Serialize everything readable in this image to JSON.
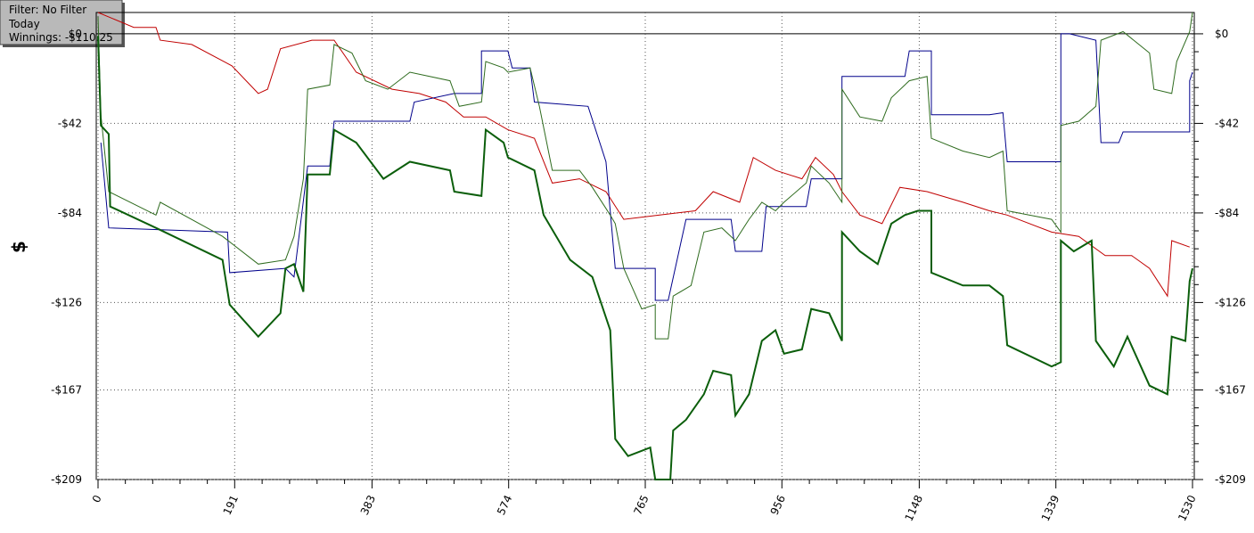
{
  "filter_box": {
    "filter": "Filter: No Filter",
    "period": "Today",
    "winnings": "Winnings: -$110.25"
  },
  "chart_data": {
    "type": "line",
    "y_label": "$",
    "xlim": [
      0,
      1530
    ],
    "xticks": [
      0,
      191,
      383,
      574,
      765,
      956,
      1148,
      1339,
      1530
    ],
    "ylim": [
      -209,
      10
    ],
    "yticks": [
      {
        "value": 0,
        "label": "$0"
      },
      {
        "value": -42,
        "label": "-$42"
      },
      {
        "value": -84,
        "label": "-$84"
      },
      {
        "value": -126,
        "label": "-$126"
      },
      {
        "value": -167,
        "label": "-$167"
      },
      {
        "value": -209,
        "label": "-$209"
      }
    ],
    "grid": true,
    "series": [
      {
        "color": "#c00000",
        "width": 1,
        "x": [
          0,
          50,
          81,
          87,
          131,
          187,
          224,
          237,
          255,
          299,
          330,
          361,
          411,
          449,
          486,
          511,
          542,
          573,
          610,
          635,
          673,
          710,
          735,
          785,
          835,
          860,
          897,
          916,
          947,
          984,
          1003,
          1028,
          1040,
          1065,
          1096,
          1121,
          1159,
          1209,
          1246,
          1271,
          1333,
          1371,
          1408,
          1445,
          1470,
          1495,
          1501,
          1526
        ],
        "values": [
          10,
          3,
          3,
          -3,
          -5,
          -15,
          -28,
          -26,
          -7,
          -3,
          -3,
          -18,
          -26,
          -28,
          -32,
          -39,
          -39,
          -45,
          -49,
          -70,
          -68,
          -74,
          -87,
          -85,
          -83,
          -74,
          -79,
          -58,
          -64,
          -68,
          -58,
          -66,
          -74,
          -85,
          -89,
          -72,
          -74,
          -79,
          -83,
          -85,
          -93,
          -95,
          -104,
          -104,
          -110,
          -123,
          -97,
          -100
        ]
      },
      {
        "color": "#00008b",
        "width": 1,
        "x": [
          4,
          15,
          181,
          184,
          262,
          274,
          293,
          324,
          330,
          436,
          442,
          498,
          536,
          536,
          573,
          579,
          604,
          610,
          685,
          710,
          723,
          779,
          779,
          797,
          822,
          885,
          891,
          928,
          934,
          990,
          997,
          1040,
          1040,
          1128,
          1134,
          1165,
          1165,
          1246,
          1265,
          1271,
          1346,
          1346,
          1358,
          1395,
          1402,
          1427,
          1433,
          1526,
          1526,
          1530
        ],
        "values": [
          -51,
          -91,
          -93,
          -112,
          -110,
          -114,
          -62,
          -62,
          -41,
          -41,
          -32,
          -28,
          -28,
          -8,
          -8,
          -16,
          -16,
          -32,
          -34,
          -60,
          -110,
          -110,
          -125,
          -125,
          -87,
          -87,
          -102,
          -102,
          -81,
          -81,
          -68,
          -68,
          -20,
          -20,
          -8,
          -8,
          -38,
          -38,
          -37,
          -60,
          -60,
          0,
          0,
          -3,
          -51,
          -51,
          -46,
          -46,
          -22,
          -18
        ]
      },
      {
        "color": "#2e6b1e",
        "width": 1,
        "x": [
          0,
          4,
          15,
          81,
          87,
          174,
          224,
          262,
          274,
          287,
          293,
          324,
          330,
          355,
          374,
          405,
          436,
          492,
          505,
          536,
          542,
          567,
          573,
          604,
          617,
          635,
          673,
          691,
          716,
          723,
          735,
          760,
          779,
          779,
          797,
          804,
          829,
          847,
          872,
          891,
          910,
          928,
          947,
          959,
          990,
          997,
          1022,
          1040,
          1040,
          1065,
          1096,
          1109,
          1134,
          1159,
          1165,
          1209,
          1246,
          1265,
          1271,
          1333,
          1346,
          1346,
          1371,
          1395,
          1402,
          1433,
          1470,
          1476,
          1501,
          1508,
          1526,
          1530
        ],
        "values": [
          8,
          -38,
          -74,
          -85,
          -79,
          -95,
          -108,
          -106,
          -95,
          -68,
          -26,
          -24,
          -5,
          -9,
          -22,
          -26,
          -18,
          -22,
          -34,
          -32,
          -13,
          -16,
          -18,
          -16,
          -34,
          -64,
          -64,
          -72,
          -85,
          -89,
          -110,
          -129,
          -127,
          -143,
          -143,
          -123,
          -118,
          -93,
          -91,
          -97,
          -87,
          -79,
          -83,
          -79,
          -70,
          -62,
          -70,
          -79,
          -26,
          -39,
          -41,
          -30,
          -22,
          -20,
          -49,
          -55,
          -58,
          -55,
          -83,
          -87,
          -93,
          -43,
          -41,
          -34,
          -3,
          1,
          -9,
          -26,
          -28,
          -13,
          1,
          10
        ]
      },
      {
        "color": "#0b5e0b",
        "width": 2,
        "x": [
          0,
          4,
          15,
          17,
          81,
          174,
          184,
          224,
          255,
          262,
          274,
          287,
          293,
          324,
          330,
          361,
          399,
          436,
          492,
          498,
          536,
          542,
          567,
          573,
          610,
          623,
          660,
          691,
          716,
          723,
          741,
          772,
          779,
          800,
          804,
          822,
          847,
          860,
          885,
          891,
          910,
          928,
          947,
          959,
          984,
          997,
          1022,
          1040,
          1040,
          1065,
          1090,
          1109,
          1128,
          1146,
          1165,
          1165,
          1209,
          1246,
          1265,
          1271,
          1333,
          1346,
          1346,
          1364,
          1389,
          1395,
          1420,
          1439,
          1470,
          1495,
          1501,
          1520,
          1526,
          1530
        ],
        "values": [
          -1,
          -43,
          -47,
          -81,
          -91,
          -106,
          -127,
          -142,
          -131,
          -110,
          -108,
          -121,
          -66,
          -66,
          -45,
          -51,
          -68,
          -60,
          -64,
          -74,
          -76,
          -45,
          -51,
          -58,
          -64,
          -85,
          -106,
          -114,
          -139,
          -190,
          -198,
          -194,
          -209,
          -209,
          -186,
          -181,
          -169,
          -158,
          -160,
          -179,
          -169,
          -144,
          -139,
          -150,
          -148,
          -129,
          -131,
          -144,
          -93,
          -102,
          -108,
          -89,
          -85,
          -83,
          -83,
          -112,
          -118,
          -118,
          -123,
          -146,
          -156,
          -154,
          -97,
          -102,
          -97,
          -144,
          -156,
          -142,
          -165,
          -169,
          -142,
          -144,
          -116,
          -110
        ]
      }
    ]
  }
}
